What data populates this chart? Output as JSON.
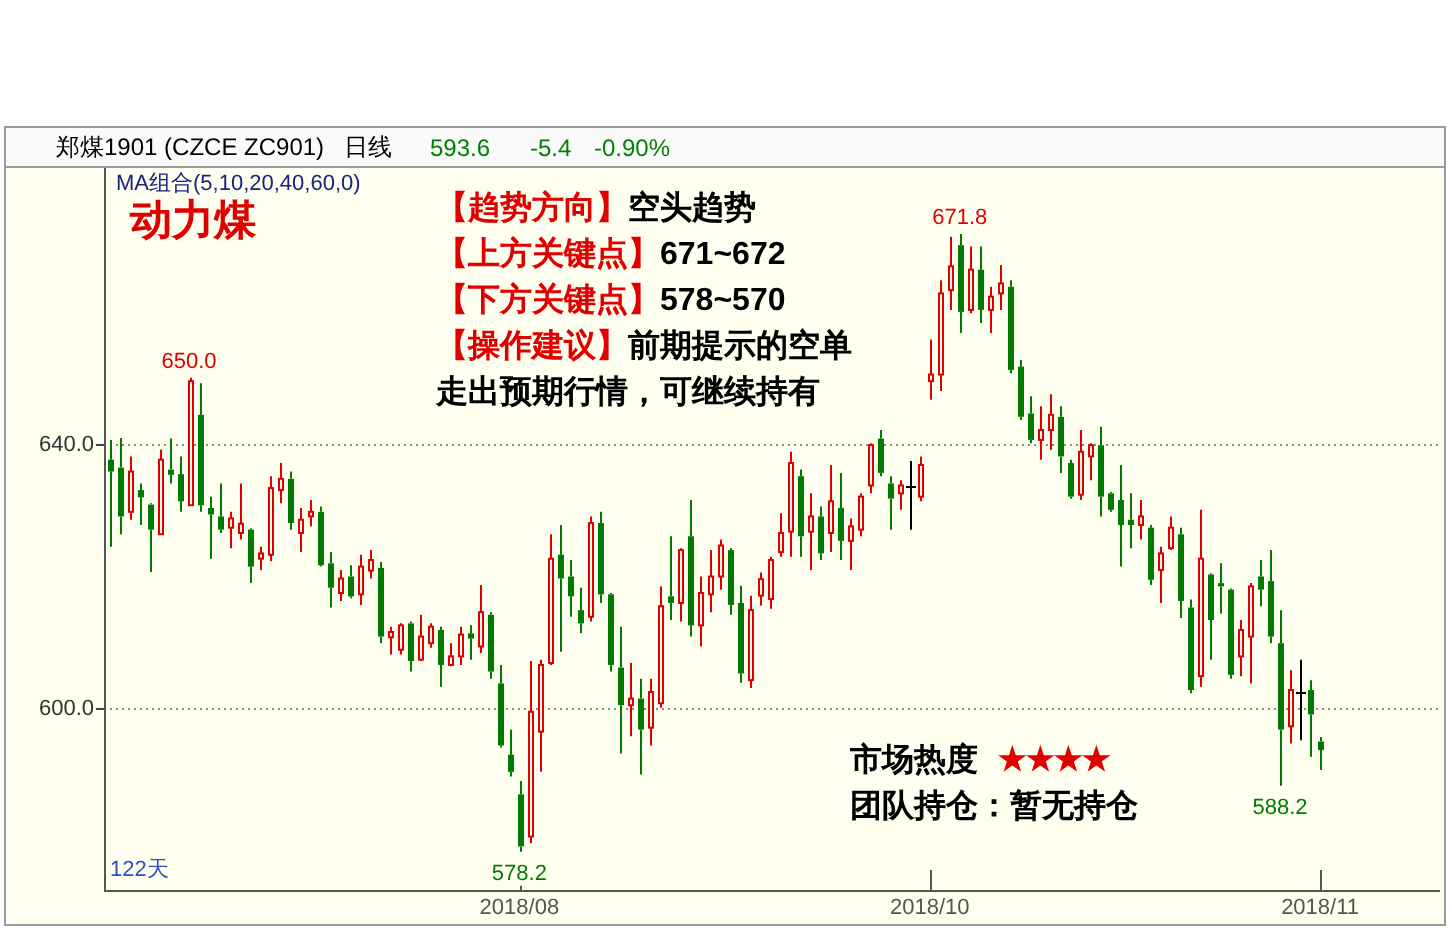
{
  "chart_data": {
    "type": "candlestick",
    "title": "郑煤1901 (CZCE ZC901)",
    "subtitle": "日线",
    "categories": [
      null,
      null,
      null,
      null,
      null,
      null,
      null,
      null,
      null,
      null,
      null,
      null,
      null,
      null,
      null,
      null,
      null,
      null,
      null,
      null,
      null,
      null,
      null,
      null,
      null,
      null,
      null,
      null,
      null,
      null,
      null,
      null,
      null,
      null,
      null,
      null,
      null,
      null,
      null,
      null,
      null,
      "2018/08",
      null,
      null,
      null,
      null,
      null,
      null,
      null,
      null,
      null,
      null,
      null,
      null,
      null,
      null,
      null,
      null,
      null,
      null,
      null,
      null,
      null,
      null,
      null,
      null,
      null,
      null,
      null,
      null,
      null,
      null,
      null,
      null,
      null,
      null,
      null,
      null,
      null,
      null,
      null,
      null,
      "2018/10",
      null,
      null,
      null,
      null,
      null,
      null,
      null,
      null,
      null,
      null,
      null,
      null,
      null,
      null,
      null,
      null,
      null,
      null,
      null,
      null,
      null,
      null,
      null,
      null,
      null,
      null,
      null,
      null,
      null,
      null,
      null,
      null,
      null,
      null,
      null,
      null,
      null,
      null,
      "2018/11"
    ],
    "ohlc": [
      [
        637.6,
        640.6,
        624.4,
        635.8
      ],
      [
        636.4,
        640.9,
        626.3,
        629.0
      ],
      [
        629.7,
        638.1,
        628.5,
        635.8
      ],
      [
        633.0,
        634.0,
        627.7,
        631.9
      ],
      [
        630.8,
        631.0,
        620.6,
        627.0
      ],
      [
        626.3,
        639.1,
        626.3,
        637.6
      ],
      [
        636.1,
        640.8,
        634.0,
        635.3
      ],
      [
        635.4,
        638.1,
        629.7,
        631.3
      ],
      [
        630.7,
        650.0,
        630.7,
        649.5
      ],
      [
        644.4,
        649.2,
        629.7,
        630.7
      ],
      [
        630.3,
        632.0,
        622.6,
        629.3
      ],
      [
        629.0,
        634.0,
        626.5,
        627.0
      ],
      [
        627.3,
        629.7,
        624.2,
        628.7
      ],
      [
        626.5,
        634.0,
        625.5,
        627.9
      ],
      [
        627.0,
        627.2,
        618.9,
        621.4
      ],
      [
        622.6,
        624.4,
        620.9,
        623.4
      ],
      [
        623.2,
        635.1,
        622.2,
        633.3
      ],
      [
        633.0,
        637.1,
        631.0,
        634.7
      ],
      [
        634.7,
        635.8,
        627.0,
        628.0
      ],
      [
        626.5,
        630.3,
        623.6,
        628.5
      ],
      [
        629.0,
        631.5,
        627.5,
        629.7
      ],
      [
        629.7,
        630.5,
        621.4,
        621.6
      ],
      [
        621.9,
        623.6,
        615.2,
        618.2
      ],
      [
        617.4,
        620.9,
        616.2,
        619.6
      ],
      [
        619.9,
        621.6,
        616.6,
        616.9
      ],
      [
        617.2,
        623.2,
        615.6,
        621.4
      ],
      [
        620.8,
        623.9,
        619.6,
        622.4
      ],
      [
        621.2,
        622.1,
        609.8,
        610.8
      ],
      [
        610.7,
        612.3,
        608.1,
        611.5
      ],
      [
        608.8,
        612.8,
        608.1,
        612.5
      ],
      [
        612.8,
        613.1,
        605.5,
        607.1
      ],
      [
        607.3,
        614.1,
        607.1,
        610.8
      ],
      [
        609.8,
        612.8,
        609.1,
        612.3
      ],
      [
        611.8,
        612.3,
        603.2,
        606.5
      ],
      [
        606.5,
        609.8,
        606.3,
        607.8
      ],
      [
        607.8,
        612.3,
        606.5,
        611.1
      ],
      [
        611.3,
        612.5,
        607.3,
        610.5
      ],
      [
        609.3,
        618.6,
        608.3,
        614.5
      ],
      [
        614.1,
        614.5,
        604.4,
        605.5
      ],
      [
        603.7,
        606.5,
        594.0,
        594.3
      ],
      [
        592.9,
        596.7,
        589.6,
        590.3
      ],
      [
        586.9,
        588.9,
        578.2,
        579.0
      ],
      [
        580.5,
        607.1,
        579.5,
        599.4
      ],
      [
        596.4,
        607.3,
        590.3,
        606.5
      ],
      [
        606.8,
        626.3,
        606.5,
        622.6
      ],
      [
        623.2,
        627.7,
        608.5,
        619.6
      ],
      [
        619.9,
        622.4,
        613.8,
        616.9
      ],
      [
        614.8,
        618.2,
        611.3,
        612.8
      ],
      [
        613.8,
        629.0,
        613.1,
        628.0
      ],
      [
        628.0,
        629.7,
        615.9,
        617.2
      ],
      [
        617.2,
        617.4,
        605.5,
        606.5
      ],
      [
        606.1,
        612.3,
        593.1,
        600.4
      ],
      [
        600.4,
        606.8,
        595.7,
        601.4
      ],
      [
        601.4,
        604.4,
        589.9,
        596.7
      ],
      [
        597.0,
        604.4,
        594.3,
        602.4
      ],
      [
        600.7,
        618.4,
        600.0,
        615.4
      ],
      [
        616.9,
        626.0,
        613.3,
        615.9
      ],
      [
        615.9,
        624.2,
        613.1,
        623.9
      ],
      [
        626.0,
        631.5,
        610.8,
        612.5
      ],
      [
        612.5,
        619.9,
        609.3,
        617.4
      ],
      [
        617.2,
        623.9,
        614.5,
        619.9
      ],
      [
        619.9,
        625.5,
        617.9,
        624.6
      ],
      [
        623.9,
        624.2,
        614.1,
        615.6
      ],
      [
        615.9,
        618.5,
        603.8,
        605.2
      ],
      [
        604.2,
        617.0,
        603.0,
        614.8
      ],
      [
        617.0,
        620.5,
        615.5,
        619.5
      ],
      [
        616.5,
        622.9,
        615.0,
        622.4
      ],
      [
        623.6,
        629.5,
        622.9,
        626.5
      ],
      [
        626.7,
        638.8,
        622.9,
        637.1
      ],
      [
        635.1,
        636.1,
        622.9,
        626.0
      ],
      [
        626.7,
        632.5,
        620.9,
        629.0
      ],
      [
        629.0,
        630.5,
        622.4,
        623.4
      ],
      [
        626.5,
        636.8,
        623.6,
        631.3
      ],
      [
        630.3,
        635.6,
        622.4,
        625.3
      ],
      [
        625.3,
        628.7,
        620.9,
        627.5
      ],
      [
        627.0,
        632.5,
        626.0,
        632.0
      ],
      [
        633.7,
        640.1,
        632.5,
        639.8
      ],
      [
        640.8,
        642.1,
        635.1,
        635.6
      ],
      [
        634.0,
        635.1,
        627.0,
        631.7
      ],
      [
        632.5,
        634.5,
        630.0,
        633.7
      ],
      [
        633.7,
        637.4,
        627.0,
        633.7
      ],
      [
        632.0,
        638.1,
        631.3,
        636.8
      ],
      [
        649.5,
        655.8,
        646.7,
        650.5
      ],
      [
        650.5,
        664.8,
        648.0,
        662.8
      ],
      [
        663.3,
        671.4,
        660.3,
        666.9
      ],
      [
        670.1,
        671.8,
        656.8,
        660.0
      ],
      [
        660.3,
        669.9,
        659.8,
        666.4
      ],
      [
        666.4,
        669.9,
        658.3,
        660.3
      ],
      [
        660.3,
        663.8,
        656.8,
        662.3
      ],
      [
        662.8,
        667.1,
        660.3,
        664.3
      ],
      [
        663.8,
        664.8,
        650.7,
        651.2
      ],
      [
        651.7,
        652.7,
        643.6,
        644.1
      ],
      [
        644.6,
        647.2,
        640.1,
        640.6
      ],
      [
        640.6,
        645.7,
        637.6,
        642.1
      ],
      [
        642.1,
        647.5,
        639.1,
        644.4
      ],
      [
        644.1,
        645.7,
        635.6,
        638.1
      ],
      [
        637.1,
        637.6,
        631.7,
        632.0
      ],
      [
        632.3,
        642.1,
        631.5,
        638.8
      ],
      [
        638.1,
        640.1,
        634.5,
        639.8
      ],
      [
        639.8,
        642.6,
        629.0,
        632.0
      ],
      [
        632.5,
        632.7,
        629.7,
        630.0
      ],
      [
        631.5,
        636.8,
        621.4,
        627.7
      ],
      [
        628.5,
        632.5,
        624.2,
        627.7
      ],
      [
        627.7,
        631.5,
        625.5,
        629.0
      ],
      [
        627.3,
        627.7,
        618.6,
        619.4
      ],
      [
        620.9,
        624.4,
        615.9,
        623.4
      ],
      [
        624.2,
        629.0,
        623.9,
        627.3
      ],
      [
        626.3,
        627.3,
        613.6,
        616.2
      ],
      [
        615.2,
        616.4,
        602.2,
        602.7
      ],
      [
        604.8,
        630.0,
        603.2,
        622.6
      ],
      [
        620.2,
        620.4,
        607.3,
        613.3
      ],
      [
        618.9,
        621.9,
        614.3,
        618.4
      ],
      [
        617.9,
        618.1,
        604.4,
        605.0
      ],
      [
        607.8,
        613.3,
        604.8,
        611.8
      ],
      [
        610.8,
        618.9,
        603.7,
        618.4
      ],
      [
        619.9,
        622.4,
        615.4,
        617.9
      ],
      [
        619.2,
        623.9,
        609.8,
        610.8
      ],
      [
        609.8,
        614.8,
        588.2,
        596.7
      ],
      [
        597.2,
        605.7,
        594.6,
        602.7
      ],
      [
        602.4,
        607.3,
        595.1,
        602.4
      ],
      [
        602.7,
        604.2,
        592.6,
        599.0
      ],
      [
        594.9,
        595.6,
        590.6,
        593.6
      ]
    ],
    "ylim": [
      572.4,
      681.8
    ],
    "yticks": [
      {
        "value": 640,
        "label": "640.0"
      },
      {
        "value": 600,
        "label": "600.0"
      }
    ],
    "grid": "y",
    "annotations": [
      "MA组合(5,10,20,40,60,0)",
      "动力煤",
      "【趋势方向】",
      "空头趋势",
      "【上方关键点】",
      "671~672",
      "【下方关键点】",
      "578~570",
      "【操作建议】",
      "前期提示的空单走出预期行情，可继续持有",
      "市场热度",
      "★★★★",
      "团队持仓：暂无持仓",
      "122天",
      "593.6",
      "-5.4",
      "-0.90%",
      {
        "text": "650.0",
        "y": 650.0
      },
      {
        "text": "671.8",
        "y": 671.8
      },
      {
        "text": "578.2",
        "x": "2018/08",
        "y": 578.2
      },
      {
        "text": "588.2",
        "y": 588.2
      }
    ]
  }
}
